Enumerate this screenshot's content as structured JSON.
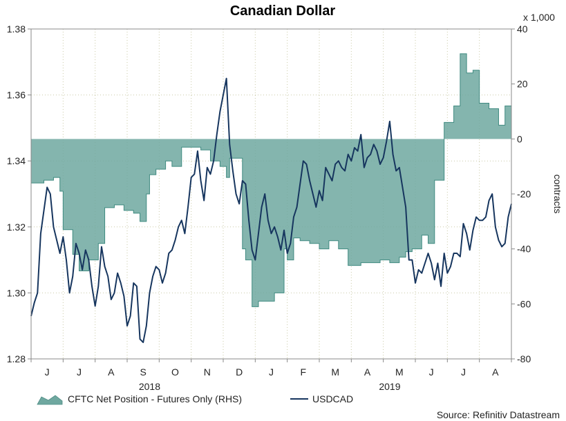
{
  "chart_data": {
    "type": "line",
    "title": "Canadian Dollar",
    "source": "Source: Refinitiv Datastream",
    "left_axis": {
      "ylim": [
        1.28,
        1.38
      ],
      "ticks": [
        "1.28",
        "1.30",
        "1.32",
        "1.34",
        "1.36",
        "1.38"
      ]
    },
    "right_axis": {
      "ylim": [
        -80,
        40
      ],
      "ticks": [
        "-80",
        "-60",
        "-40",
        "-20",
        "0",
        "20",
        "40"
      ],
      "multiplier": "x 1,000",
      "label": "contracts"
    },
    "x_axis": {
      "range": [
        0,
        15
      ],
      "months": [
        "J",
        "J",
        "A",
        "S",
        "O",
        "N",
        "D",
        "J",
        "F",
        "M",
        "A",
        "M",
        "J",
        "J",
        "A"
      ],
      "years": [
        {
          "label": "2018",
          "at": 3.7
        },
        {
          "label": "2019",
          "at": 11.2
        }
      ]
    },
    "series": [
      {
        "name": "CFTC Net Position - Futures Only (RHS)",
        "kind": "area",
        "axis": "right",
        "color": "#6fa8a0",
        "x": [
          0,
          0.4,
          0.7,
          0.9,
          1.0,
          1.3,
          1.5,
          1.8,
          2.1,
          2.3,
          2.6,
          2.9,
          3.2,
          3.4,
          3.6,
          3.7,
          3.9,
          4.2,
          4.4,
          4.7,
          5.0,
          5.3,
          5.6,
          5.9,
          6.1,
          6.2,
          6.4,
          6.6,
          6.7,
          6.9,
          7.1,
          7.3,
          7.6,
          7.9,
          8.0,
          8.2,
          8.4,
          8.7,
          9.0,
          9.3,
          9.6,
          9.9,
          10.3,
          10.6,
          10.9,
          11.2,
          11.5,
          11.7,
          11.9,
          12.2,
          12.4,
          12.6,
          12.9,
          13.2,
          13.4,
          13.6,
          13.8,
          14.0,
          14.3,
          14.6,
          14.8,
          15.0
        ],
        "values": [
          -16,
          -15,
          -14,
          -19,
          -33,
          -42,
          -48,
          -44,
          -38,
          -25,
          -24,
          -26,
          -27,
          -30,
          -20,
          -13,
          -11,
          -8,
          -10,
          -3,
          -3,
          -4,
          -8,
          -10,
          -14,
          -7,
          -7,
          -40,
          -44,
          -61,
          -59,
          -59,
          -56,
          -40,
          -44,
          -36,
          -37,
          -38,
          -40,
          -37,
          -40,
          -46,
          -45,
          -45,
          -44,
          -45,
          -43,
          -41,
          -40,
          -35,
          -38,
          -15,
          6,
          12,
          31,
          24,
          25,
          13,
          11,
          5,
          12,
          12
        ]
      },
      {
        "name": "USDCAD",
        "kind": "line",
        "axis": "left",
        "color": "#16355e",
        "x": [
          0,
          0.1,
          0.2,
          0.3,
          0.4,
          0.5,
          0.6,
          0.7,
          0.8,
          0.9,
          1.0,
          1.1,
          1.2,
          1.3,
          1.4,
          1.5,
          1.6,
          1.7,
          1.8,
          1.9,
          2.0,
          2.1,
          2.2,
          2.3,
          2.4,
          2.5,
          2.6,
          2.7,
          2.8,
          2.9,
          3.0,
          3.1,
          3.2,
          3.3,
          3.4,
          3.5,
          3.6,
          3.7,
          3.8,
          3.9,
          4.0,
          4.1,
          4.2,
          4.3,
          4.4,
          4.5,
          4.6,
          4.7,
          4.8,
          4.9,
          5.0,
          5.1,
          5.2,
          5.3,
          5.4,
          5.5,
          5.6,
          5.7,
          5.8,
          5.9,
          6.0,
          6.1,
          6.2,
          6.3,
          6.4,
          6.5,
          6.6,
          6.7,
          6.8,
          6.9,
          7.0,
          7.1,
          7.2,
          7.3,
          7.4,
          7.5,
          7.6,
          7.7,
          7.8,
          7.9,
          8.0,
          8.1,
          8.2,
          8.3,
          8.4,
          8.5,
          8.6,
          8.7,
          8.8,
          8.9,
          9.0,
          9.1,
          9.2,
          9.3,
          9.4,
          9.5,
          9.6,
          9.7,
          9.8,
          9.9,
          10.0,
          10.1,
          10.2,
          10.3,
          10.4,
          10.5,
          10.6,
          10.7,
          10.8,
          10.9,
          11.0,
          11.1,
          11.2,
          11.3,
          11.4,
          11.5,
          11.6,
          11.7,
          11.8,
          11.9,
          12.0,
          12.1,
          12.2,
          12.3,
          12.4,
          12.5,
          12.6,
          12.7,
          12.8,
          12.9,
          13.0,
          13.1,
          13.2,
          13.3,
          13.4,
          13.5,
          13.6,
          13.7,
          13.8,
          13.9,
          14.0,
          14.1,
          14.2,
          14.3,
          14.4,
          14.5,
          14.6,
          14.7,
          14.8,
          14.9,
          15.0
        ],
        "values": [
          1.293,
          1.297,
          1.3,
          1.318,
          1.325,
          1.332,
          1.33,
          1.32,
          1.316,
          1.312,
          1.317,
          1.31,
          1.3,
          1.305,
          1.315,
          1.312,
          1.307,
          1.313,
          1.31,
          1.302,
          1.296,
          1.302,
          1.314,
          1.308,
          1.305,
          1.298,
          1.3,
          1.306,
          1.303,
          1.299,
          1.29,
          1.293,
          1.303,
          1.302,
          1.286,
          1.285,
          1.29,
          1.3,
          1.305,
          1.308,
          1.307,
          1.303,
          1.306,
          1.312,
          1.313,
          1.316,
          1.32,
          1.322,
          1.318,
          1.326,
          1.335,
          1.336,
          1.343,
          1.334,
          1.328,
          1.338,
          1.336,
          1.34,
          1.348,
          1.355,
          1.36,
          1.365,
          1.345,
          1.337,
          1.33,
          1.327,
          1.334,
          1.333,
          1.322,
          1.313,
          1.31,
          1.318,
          1.326,
          1.33,
          1.322,
          1.318,
          1.32,
          1.317,
          1.313,
          1.319,
          1.312,
          1.315,
          1.323,
          1.326,
          1.333,
          1.34,
          1.339,
          1.334,
          1.33,
          1.326,
          1.331,
          1.328,
          1.338,
          1.336,
          1.334,
          1.339,
          1.34,
          1.338,
          1.337,
          1.342,
          1.34,
          1.344,
          1.343,
          1.348,
          1.338,
          1.341,
          1.342,
          1.345,
          1.343,
          1.339,
          1.341,
          1.346,
          1.352,
          1.342,
          1.337,
          1.338,
          1.332,
          1.326,
          1.31,
          1.31,
          1.303,
          1.307,
          1.306,
          1.309,
          1.312,
          1.309,
          1.304,
          1.309,
          1.302,
          1.312,
          1.306,
          1.308,
          1.312,
          1.312,
          1.311,
          1.321,
          1.318,
          1.313,
          1.319,
          1.323,
          1.322,
          1.322,
          1.323,
          1.328,
          1.33,
          1.32,
          1.316,
          1.314,
          1.315,
          1.323,
          1.327
        ]
      }
    ]
  }
}
